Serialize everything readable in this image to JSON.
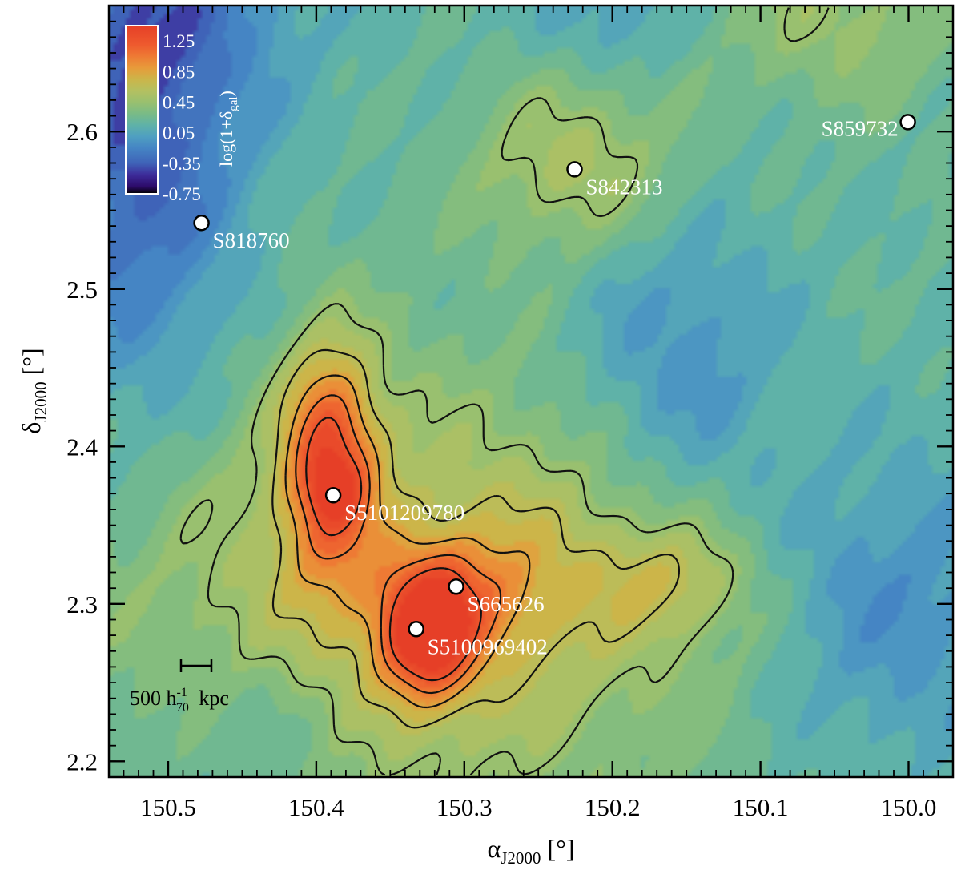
{
  "chart_data": {
    "type": "heatmap",
    "xlabel_main": "α",
    "xlabel_sub": "J2000",
    "xlabel_unit": "[°]",
    "ylabel_main": "δ",
    "ylabel_sub": "J2000",
    "ylabel_unit": "[°]",
    "xlim": [
      150.54,
      149.97
    ],
    "ylim": [
      2.19,
      2.68
    ],
    "x_major_ticks": [
      150.5,
      150.4,
      150.3,
      150.2,
      150.1,
      150.0
    ],
    "x_tick_labels": [
      "150.5",
      "150.4",
      "150.3",
      "150.2",
      "150.1",
      "150.0"
    ],
    "y_major_ticks": [
      2.2,
      2.3,
      2.4,
      2.5,
      2.6
    ],
    "y_tick_labels": [
      "2.2",
      "2.3",
      "2.4",
      "2.5",
      "2.6"
    ],
    "x_minor_step": 0.01,
    "y_minor_step": 0.01,
    "colorbar": {
      "label": "log(1+δ",
      "label_sub": "gal",
      "label_close": ")",
      "range": [
        -0.75,
        1.45
      ],
      "tick_values": [
        1.25,
        0.85,
        0.45,
        0.05,
        -0.35,
        -0.75
      ],
      "tick_labels": [
        "1.25",
        "0.85",
        "0.45",
        "0.05",
        "-0.35",
        "-0.75"
      ],
      "colors": [
        {
          "v": -0.75,
          "c": "#000000"
        },
        {
          "v": -0.65,
          "c": "#2d0b6b"
        },
        {
          "v": -0.5,
          "c": "#3d2c9a"
        },
        {
          "v": -0.35,
          "c": "#3f63b8"
        },
        {
          "v": -0.15,
          "c": "#4585c4"
        },
        {
          "v": 0.0,
          "c": "#4f9fc1"
        },
        {
          "v": 0.15,
          "c": "#5fb2a8"
        },
        {
          "v": 0.3,
          "c": "#79bb86"
        },
        {
          "v": 0.45,
          "c": "#99c06f"
        },
        {
          "v": 0.6,
          "c": "#b4c060"
        },
        {
          "v": 0.75,
          "c": "#ccb549"
        },
        {
          "v": 0.9,
          "c": "#e89a3a"
        },
        {
          "v": 1.05,
          "c": "#ee7a34"
        },
        {
          "v": 1.2,
          "c": "#ee5a2e"
        },
        {
          "v": 1.45,
          "c": "#e63f27"
        }
      ]
    },
    "density_field": {
      "base": 0.2,
      "components": [
        {
          "x": 150.391,
          "y": 2.392,
          "sx": 0.022,
          "sy": 0.05,
          "a": 0.95
        },
        {
          "x": 150.387,
          "y": 2.372,
          "sx": 0.012,
          "sy": 0.012,
          "a": 0.25
        },
        {
          "x": 150.325,
          "y": 2.278,
          "sx": 0.022,
          "sy": 0.028,
          "a": 0.95
        },
        {
          "x": 150.305,
          "y": 2.306,
          "sx": 0.038,
          "sy": 0.026,
          "a": 0.35
        },
        {
          "x": 150.34,
          "y": 2.3,
          "sx": 0.14,
          "sy": 0.1,
          "a": 0.45
        },
        {
          "x": 150.155,
          "y": 2.315,
          "sx": 0.035,
          "sy": 0.025,
          "a": 0.3
        },
        {
          "x": 150.24,
          "y": 2.32,
          "sx": 0.06,
          "sy": 0.05,
          "a": 0.15
        },
        {
          "x": 150.225,
          "y": 2.58,
          "sx": 0.05,
          "sy": 0.04,
          "a": 0.35
        },
        {
          "x": 150.05,
          "y": 2.675,
          "sx": 0.06,
          "sy": 0.04,
          "a": 0.25
        },
        {
          "x": 150.52,
          "y": 2.6,
          "sx": 0.05,
          "sy": 0.12,
          "a": -0.55
        },
        {
          "x": 150.48,
          "y": 2.68,
          "sx": 0.06,
          "sy": 0.05,
          "a": -0.2
        },
        {
          "x": 150.155,
          "y": 2.45,
          "sx": 0.05,
          "sy": 0.07,
          "a": -0.3
        },
        {
          "x": 150.01,
          "y": 2.3,
          "sx": 0.06,
          "sy": 0.07,
          "a": -0.3
        },
        {
          "x": 150.44,
          "y": 2.22,
          "sx": 0.05,
          "sy": 0.04,
          "a": -0.2
        },
        {
          "x": 150.2,
          "y": 2.68,
          "sx": 0.04,
          "sy": 0.03,
          "a": -0.2
        }
      ],
      "contour_levels": [
        0.45,
        0.65,
        0.85,
        1.05,
        1.25
      ]
    },
    "points": [
      {
        "name": "S818760",
        "x": 150.4775,
        "y": 2.542
      },
      {
        "name": "S842313",
        "x": 150.2255,
        "y": 2.576
      },
      {
        "name": "S859732",
        "x": 150.0005,
        "y": 2.606
      },
      {
        "name": "S5101209780",
        "x": 150.3885,
        "y": 2.369
      },
      {
        "name": "S665626",
        "x": 150.3055,
        "y": 2.311
      },
      {
        "name": "S5100969402",
        "x": 150.3325,
        "y": 2.284
      }
    ],
    "scale_bar": {
      "length": 500,
      "text": "500 h",
      "sup": "-1",
      "sub": "70",
      "unit": "kpc"
    }
  }
}
